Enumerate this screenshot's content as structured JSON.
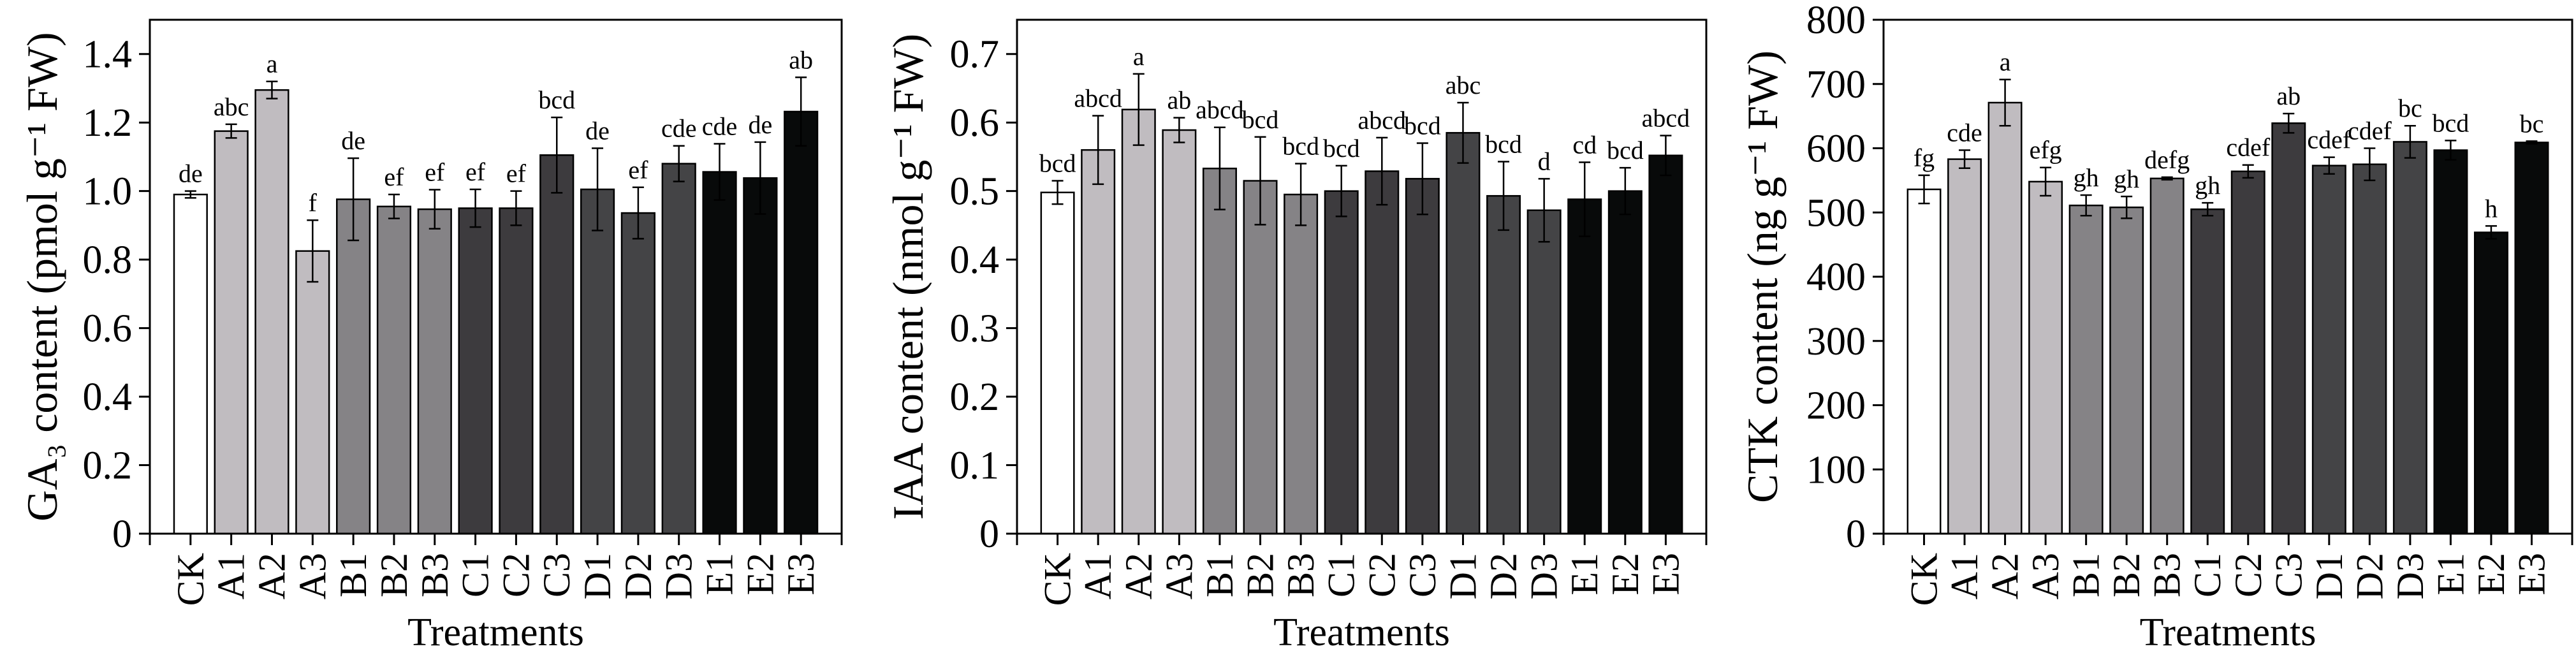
{
  "chart_data": [
    {
      "type": "bar",
      "ylabel": "GA₃ content (pmol g⁻¹ FW)",
      "xlabel": "Treatments",
      "ylim": [
        0,
        1.5
      ],
      "yticks": [
        0,
        0.2,
        0.4,
        0.6,
        0.8,
        1.0,
        1.2,
        1.4
      ],
      "ytick_labels": [
        "0",
        "0.2",
        "0.4",
        "0.6",
        "0.8",
        "1.0",
        "1.2",
        "1.4"
      ],
      "categories": [
        "CK",
        "A1",
        "A2",
        "A3",
        "B1",
        "B2",
        "B3",
        "C1",
        "C2",
        "C3",
        "D1",
        "D2",
        "D3",
        "E1",
        "E2",
        "E3"
      ],
      "values": [
        0.99,
        1.175,
        1.295,
        0.825,
        0.976,
        0.955,
        0.947,
        0.95,
        0.95,
        1.105,
        1.005,
        0.936,
        1.08,
        1.056,
        1.038,
        1.232
      ],
      "errors": [
        0.01,
        0.02,
        0.025,
        0.09,
        0.12,
        0.035,
        0.057,
        0.055,
        0.05,
        0.11,
        0.12,
        0.075,
        0.052,
        0.082,
        0.105,
        0.1
      ],
      "letters": [
        "de",
        "abc",
        "a",
        "f",
        "de",
        "ef",
        "ef",
        "ef",
        "ef",
        "bcd",
        "de",
        "ef",
        "cde",
        "cde",
        "de",
        "ab"
      ]
    },
    {
      "type": "bar",
      "ylabel": "IAA content (nmol g⁻¹ FW)",
      "xlabel": "Treatments",
      "ylim": [
        0,
        0.75
      ],
      "yticks": [
        0,
        0.1,
        0.2,
        0.3,
        0.4,
        0.5,
        0.6,
        0.7
      ],
      "ytick_labels": [
        "0",
        "0.1",
        "0.2",
        "0.3",
        "0.4",
        "0.5",
        "0.6",
        "0.7"
      ],
      "categories": [
        "CK",
        "A1",
        "A2",
        "A3",
        "B1",
        "B2",
        "B3",
        "C1",
        "C2",
        "C3",
        "D1",
        "D2",
        "D3",
        "E1",
        "E2",
        "E3"
      ],
      "values": [
        0.498,
        0.56,
        0.619,
        0.589,
        0.533,
        0.515,
        0.495,
        0.5,
        0.529,
        0.518,
        0.585,
        0.493,
        0.472,
        0.488,
        0.5,
        0.552
      ],
      "errors": [
        0.017,
        0.05,
        0.052,
        0.018,
        0.06,
        0.064,
        0.045,
        0.037,
        0.049,
        0.052,
        0.044,
        0.05,
        0.046,
        0.054,
        0.034,
        0.029
      ],
      "letters": [
        "bcd",
        "abcd",
        "a",
        "ab",
        "abcd",
        "bcd",
        "bcd",
        "bcd",
        "abcd",
        "bcd",
        "abc",
        "bcd",
        "d",
        "cd",
        "bcd",
        "abcd"
      ]
    },
    {
      "type": "bar",
      "ylabel": "CTK content (ng g⁻¹ FW)",
      "xlabel": "Treatments",
      "ylim": [
        0,
        800
      ],
      "yticks": [
        0,
        100,
        200,
        300,
        400,
        500,
        600,
        700,
        800
      ],
      "ytick_labels": [
        "0",
        "100",
        "200",
        "300",
        "400",
        "500",
        "600",
        "700",
        "800"
      ],
      "categories": [
        "CK",
        "A1",
        "A2",
        "A3",
        "B1",
        "B2",
        "B3",
        "C1",
        "C2",
        "C3",
        "D1",
        "D2",
        "D3",
        "E1",
        "E2",
        "E3"
      ],
      "values": [
        536,
        583,
        671,
        548,
        511,
        508,
        553,
        505,
        564,
        639,
        573,
        575,
        610,
        597,
        469,
        609
      ],
      "errors": [
        22,
        14,
        36,
        22,
        16,
        17,
        2,
        10,
        10,
        15,
        13,
        25,
        25,
        15,
        10,
        2
      ],
      "letters": [
        "fg",
        "cde",
        "a",
        "efg",
        "gh",
        "gh",
        "defg",
        "gh",
        "cdef",
        "ab",
        "cdef",
        "cdef",
        "bc",
        "bcd",
        "h",
        "bc"
      ]
    }
  ],
  "colors": {
    "CK": "#ffffff",
    "A": "#c0bcc0",
    "B": "#858386",
    "C": "#3d3b3e",
    "D": "#444446",
    "E": "#080a0a"
  }
}
